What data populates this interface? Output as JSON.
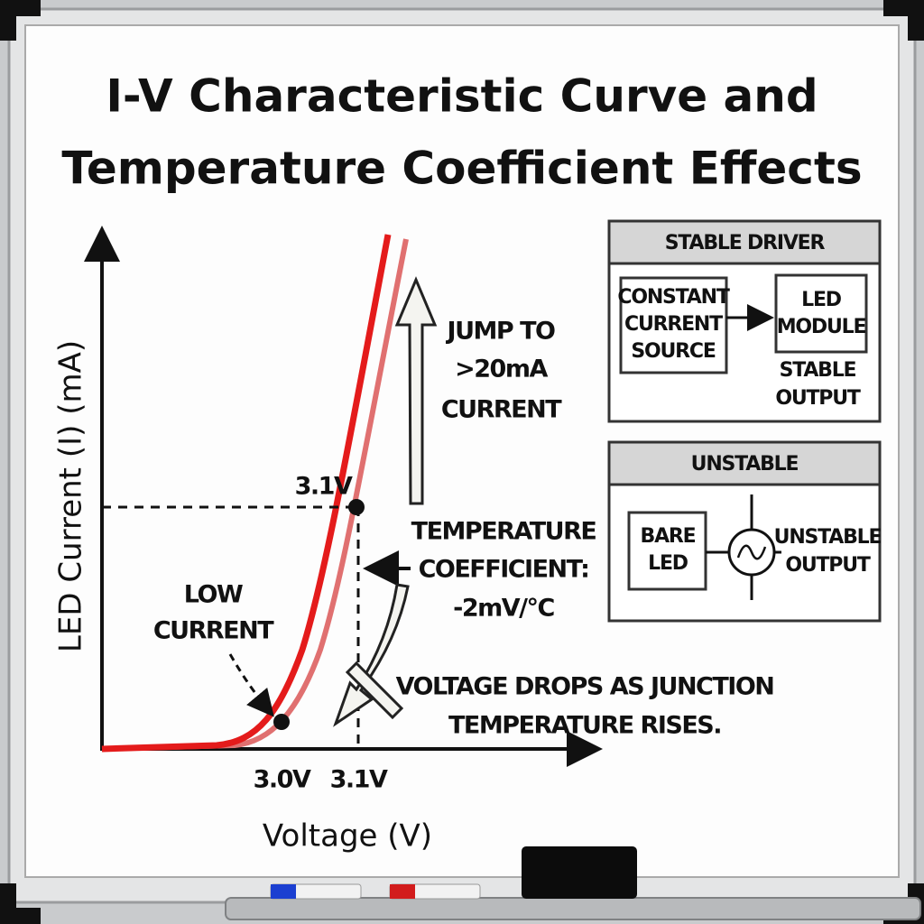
{
  "title": [
    "I-V Characteristic Curve and",
    "Temperature Coefficient Effects"
  ],
  "graph": {
    "y_axis_label": "LED Current (I) (mA)",
    "x_axis_label": "Voltage (V)",
    "x_tick_labels": [
      "3.0V",
      "3.1V"
    ],
    "point_label": "3.1V",
    "low_current": [
      "LOW",
      "CURRENT"
    ],
    "jump": [
      "JUMP TO",
      ">20mA",
      "CURRENT"
    ],
    "temperature_coefficient": [
      "TEMPERATURE",
      "COEFFICIENT:",
      "-2mV/°C"
    ],
    "voltage_drop": [
      "VOLTAGE DROPS AS JUNCTION",
      "TEMPERATURE RISES."
    ]
  },
  "stable_driver": {
    "header": "STABLE DRIVER",
    "source": [
      "CONSTANT",
      "CURRENT",
      "SOURCE"
    ],
    "module": [
      "LED",
      "MODULE"
    ],
    "output": [
      "STABLE",
      "OUTPUT"
    ]
  },
  "unstable": {
    "header": "UNSTABLE",
    "led": [
      "BARE",
      "LED"
    ],
    "output": [
      "UNSTABLE",
      "OUTPUT"
    ]
  }
}
